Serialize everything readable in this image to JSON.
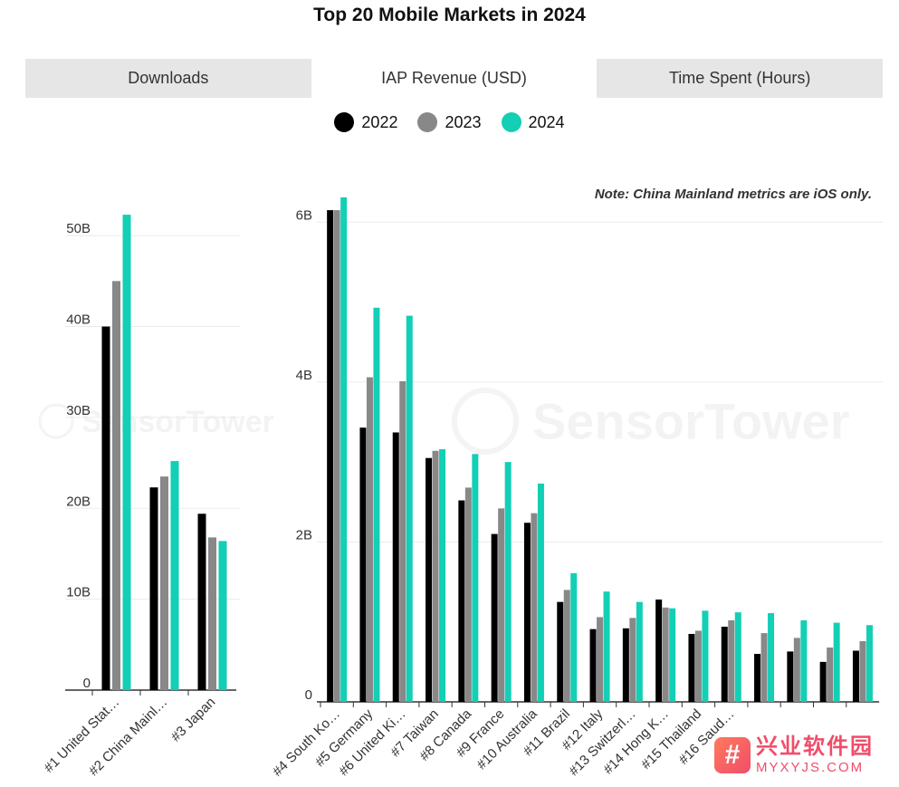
{
  "title": "Top 20 Mobile Markets in 2024",
  "tabs": [
    {
      "label": "Downloads",
      "active": false
    },
    {
      "label": "IAP Revenue (USD)",
      "active": true
    },
    {
      "label": "Time Spent (Hours)",
      "active": false
    }
  ],
  "legend": [
    {
      "label": "2022",
      "color": "#000000"
    },
    {
      "label": "2023",
      "color": "#888888"
    },
    {
      "label": "2024",
      "color": "#12cfb5"
    }
  ],
  "watermark": "SensorTower",
  "badge": {
    "logo_icon": "hash-logo-icon",
    "text": "兴业软件园",
    "url": "MYXYJS.COM"
  },
  "chart_data": [
    {
      "type": "bar",
      "categories": [
        "#1 United Stat…",
        "#2 China Mainl…",
        "#3 Japan"
      ],
      "series": [
        {
          "name": "2022",
          "values": [
            40.0,
            22.3,
            19.4
          ]
        },
        {
          "name": "2023",
          "values": [
            45.0,
            23.5,
            16.8
          ]
        },
        {
          "name": "2024",
          "values": [
            52.3,
            25.2,
            16.4
          ]
        }
      ],
      "ylim": [
        0,
        55
      ],
      "yticks": [
        0,
        10,
        20,
        30,
        40,
        50
      ],
      "ytick_labels": [
        "0",
        "10B",
        "20B",
        "30B",
        "40B",
        "50B"
      ],
      "grid": true
    },
    {
      "type": "bar",
      "categories": [
        "#4 South Ko…",
        "#5 Germany",
        "#6 United Ki…",
        "#7 Taiwan",
        "#8 Canada",
        "#9 France",
        "#10 Australia",
        "#11 Brazil",
        "#12 Italy",
        "#13 Switzerl…",
        "#14 Hong K…",
        "#15 Thailand",
        "#16 Saud…",
        "",
        "",
        "",
        ""
      ],
      "series": [
        {
          "name": "2022",
          "values": [
            6.15,
            3.43,
            3.37,
            3.05,
            2.52,
            2.1,
            2.24,
            1.25,
            0.91,
            0.92,
            1.28,
            0.85,
            0.94,
            0.6,
            0.63,
            0.5,
            0.64
          ]
        },
        {
          "name": "2023",
          "values": [
            6.15,
            4.06,
            4.01,
            3.14,
            2.68,
            2.42,
            2.36,
            1.4,
            1.06,
            1.05,
            1.18,
            0.89,
            1.02,
            0.86,
            0.8,
            0.68,
            0.76
          ]
        },
        {
          "name": "2024",
          "values": [
            6.31,
            4.93,
            4.83,
            3.16,
            3.1,
            3.0,
            2.73,
            1.61,
            1.38,
            1.25,
            1.17,
            1.14,
            1.12,
            1.11,
            1.02,
            0.99,
            0.96
          ]
        }
      ],
      "ylim": [
        0,
        6.4
      ],
      "yticks": [
        0,
        2,
        4,
        6
      ],
      "ytick_labels": [
        "0",
        "2B",
        "4B",
        "6B"
      ],
      "note": "Note: China Mainland metrics are iOS only.",
      "grid": true
    }
  ]
}
